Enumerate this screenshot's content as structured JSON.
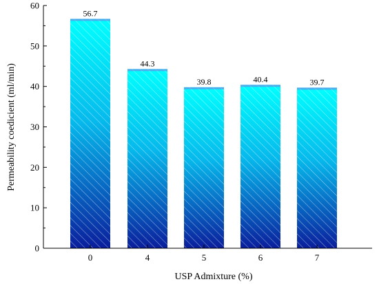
{
  "chart_data": {
    "type": "bar",
    "title": "",
    "xlabel": "USP Admixture (%)",
    "ylabel": "Permeability coedicient (ml/min)",
    "categories": [
      "0",
      "4",
      "5",
      "6",
      "7"
    ],
    "values": [
      56.7,
      44.3,
      39.8,
      40.4,
      39.7
    ],
    "data_labels": [
      "56.7",
      "44.3",
      "39.8",
      "40.4",
      "39.7"
    ],
    "ylim": [
      0,
      60
    ],
    "yticks": [
      0,
      10,
      20,
      30,
      40,
      50,
      60
    ],
    "grid": false,
    "legend": "none",
    "colors": {
      "bar_top": "#00ffff",
      "bar_bottom": "#0a1e9c",
      "hatch": "#ffffff",
      "axis": "#000000"
    }
  }
}
